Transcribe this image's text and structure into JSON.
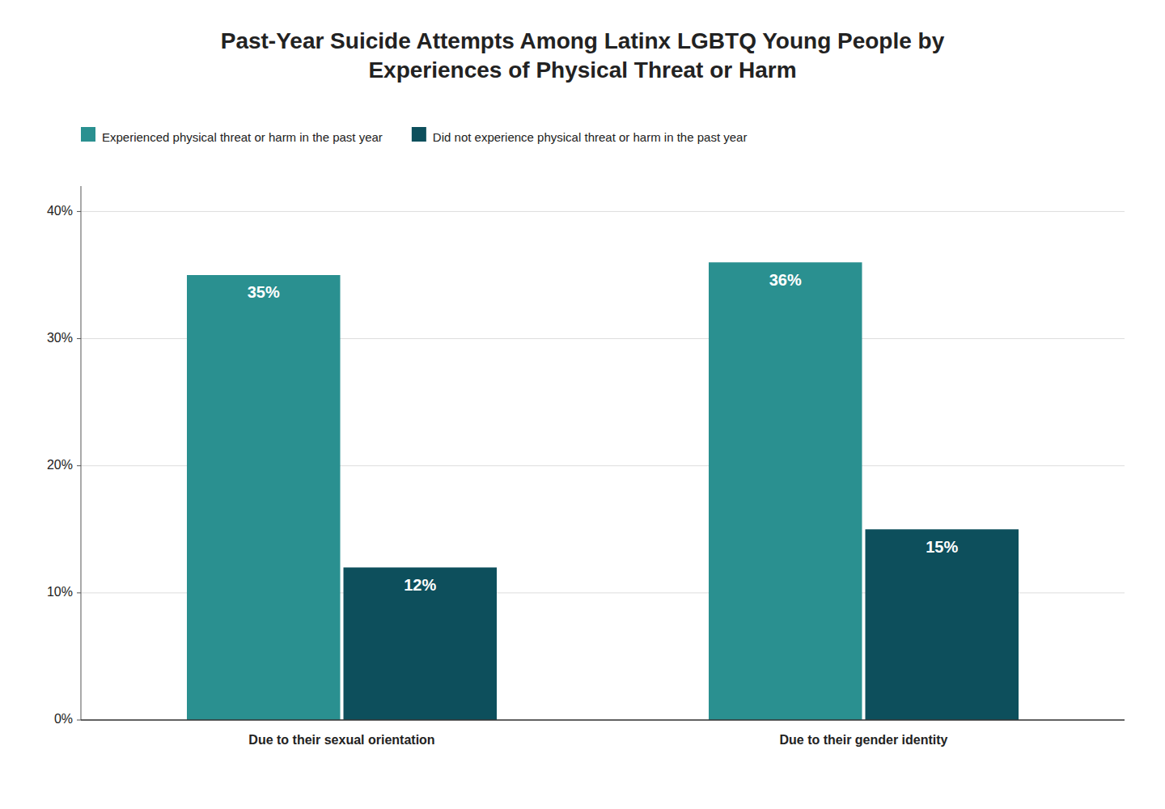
{
  "chart_data": {
    "type": "bar",
    "title": "Past-Year Suicide Attempts Among Latinx LGBTQ Young People by\nExperiences of Physical Threat or Harm",
    "categories": [
      "Due to their sexual orientation",
      "Due to their gender identity"
    ],
    "series": [
      {
        "name": "Experienced physical threat or harm in the past year",
        "color": "#2a9090",
        "values": [
          35,
          36
        ],
        "value_labels": [
          "35%",
          "36%"
        ]
      },
      {
        "name": "Did not experience physical threat or harm in the past year",
        "color": "#0d4f5c",
        "values": [
          12,
          15
        ],
        "value_labels": [
          "12%",
          "15%"
        ]
      }
    ],
    "ylim": [
      0,
      42
    ],
    "yticks": [
      {
        "value": 0,
        "label": "0%"
      },
      {
        "value": 10,
        "label": "10%"
      },
      {
        "value": 20,
        "label": "20%"
      },
      {
        "value": 30,
        "label": "30%"
      },
      {
        "value": 40,
        "label": "40%"
      }
    ],
    "grid": true,
    "legend": "upper left",
    "data_labels": true
  }
}
